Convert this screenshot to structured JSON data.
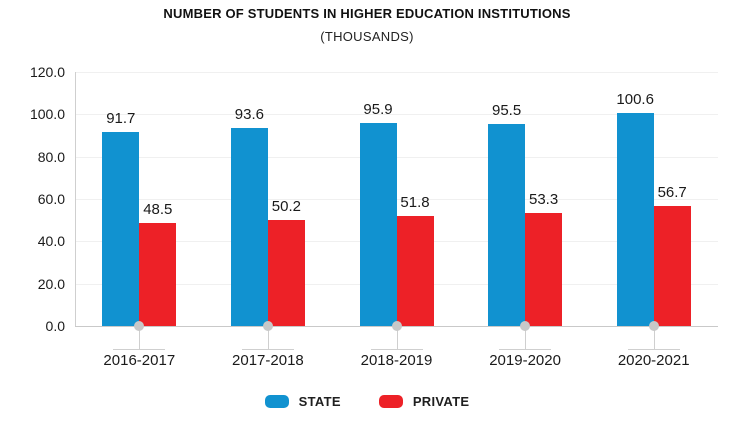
{
  "title": "NUMBER OF STUDENTS IN HIGHER EDUCATION INSTITUTIONS",
  "subtitle": "(THOUSANDS)",
  "colors": {
    "state": "#1192d0",
    "private": "#ed2127",
    "grid": "#f0f0f0",
    "axis": "#c9c9c9",
    "tick_dot": "#c8c8c8",
    "text": "#1a1a1a"
  },
  "legend": [
    {
      "label": "STATE",
      "color": "#1192d0"
    },
    {
      "label": "PRIVATE",
      "color": "#ed2127"
    }
  ],
  "chart_data": {
    "type": "bar",
    "title": "NUMBER OF STUDENTS IN HIGHER EDUCATION INSTITUTIONS",
    "subtitle": "(THOUSANDS)",
    "categories": [
      "2016-2017",
      "2017-2018",
      "2018-2019",
      "2019-2020",
      "2020-2021"
    ],
    "series": [
      {
        "name": "STATE",
        "color": "#1192d0",
        "values": [
          91.7,
          93.6,
          95.9,
          95.5,
          100.6
        ]
      },
      {
        "name": "PRIVATE",
        "color": "#ed2127",
        "values": [
          48.5,
          50.2,
          51.8,
          53.3,
          56.7
        ]
      }
    ],
    "xlabel": "",
    "ylabel": "",
    "ylim": [
      0,
      120
    ],
    "ytick_step": 20,
    "ytick_labels": [
      "0.0",
      "20.0",
      "40.0",
      "60.0",
      "80.0",
      "100.0",
      "120.0"
    ],
    "grid": true,
    "value_labels": true,
    "value_label_decimals": 1,
    "legend_position": "bottom"
  }
}
